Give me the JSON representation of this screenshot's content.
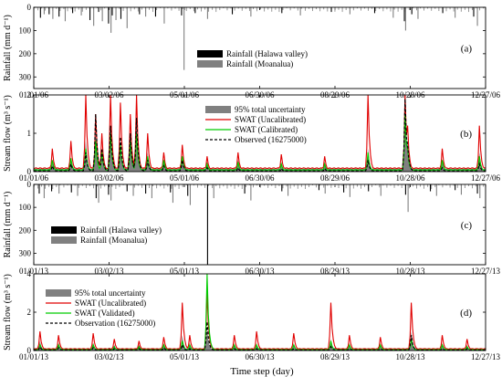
{
  "xlabel": "Time step (day)",
  "chart_data": [
    {
      "panel": "(a)",
      "type": "bar",
      "ylabel": "Rainfall (mm d⁻¹)",
      "ylim": [
        0,
        350
      ],
      "yaxis_inverted": true,
      "yticks": [
        "0",
        "100",
        "200",
        "300"
      ],
      "xtick_labels": [
        "01/01/06",
        "03/02/06",
        "05/01/06",
        "06/30/06",
        "08/29/06",
        "10/28/06",
        "12/27/06"
      ],
      "legend": {
        "placement": "center-right",
        "entries": [
          "Rainfall (Halawa valley)",
          "Rainfall (Moanalua)"
        ]
      },
      "series": [
        {
          "name": "Rainfall (Halawa valley)",
          "color": "#000000",
          "x_day": [
            5,
            12,
            20,
            31,
            45,
            52,
            60,
            63,
            70,
            85,
            98,
            119,
            130,
            160,
            200,
            240,
            275,
            299,
            305,
            330,
            355
          ],
          "values": [
            45,
            30,
            40,
            25,
            55,
            20,
            70,
            35,
            50,
            30,
            40,
            35,
            25,
            30,
            25,
            20,
            25,
            60,
            30,
            25,
            40
          ]
        },
        {
          "name": "Rainfall (Moanalua)",
          "color": "#808080",
          "x_day": [
            8,
            15,
            25,
            38,
            48,
            55,
            62,
            66,
            75,
            90,
            105,
            121,
            140,
            175,
            215,
            255,
            290,
            300,
            310,
            340,
            358
          ],
          "values": [
            30,
            50,
            60,
            35,
            80,
            60,
            110,
            55,
            90,
            40,
            70,
            270,
            50,
            40,
            35,
            30,
            45,
            100,
            50,
            45,
            80
          ]
        }
      ]
    },
    {
      "panel": "(b)",
      "type": "line",
      "ylabel": "Stream flow (m³ s⁻¹)",
      "ylim": [
        0,
        2
      ],
      "yticks": [
        "0",
        "1",
        "2"
      ],
      "xtick_labels": [
        "01/01/06",
        "03/02/06",
        "05/01/06",
        "06/30/06",
        "08/29/06",
        "10/28/06",
        "12/27/06"
      ],
      "legend": {
        "placement": "top-right",
        "entries": [
          "95% total uncertainty",
          "SWAT (Uncalibrated)",
          "SWAT (Calibrated)",
          "Observed (16275000)"
        ]
      },
      "base": {
        "uncertainty": 0.08,
        "uncalibrated": 0.1,
        "calibrated": 0.05,
        "observed": 0.02
      },
      "events": [
        {
          "day": 15,
          "uncalibrated": 0.6,
          "calibrated": 0.3,
          "observed": 0.15,
          "uncertainty": 0.3
        },
        {
          "day": 30,
          "uncalibrated": 0.8,
          "calibrated": 0.35,
          "observed": 0.2,
          "uncertainty": 0.35
        },
        {
          "day": 42,
          "uncalibrated": 2.0,
          "calibrated": 0.6,
          "observed": 0.5,
          "uncertainty": 0.8
        },
        {
          "day": 50,
          "uncalibrated": 1.5,
          "calibrated": 0.8,
          "observed": 1.5,
          "uncertainty": 1.0
        },
        {
          "day": 55,
          "uncalibrated": 1.0,
          "calibrated": 0.5,
          "observed": 0.6,
          "uncertainty": 0.6
        },
        {
          "day": 62,
          "uncalibrated": 2.0,
          "calibrated": 1.0,
          "observed": 1.2,
          "uncertainty": 1.1
        },
        {
          "day": 70,
          "uncalibrated": 1.8,
          "calibrated": 0.7,
          "observed": 0.9,
          "uncertainty": 0.9
        },
        {
          "day": 78,
          "uncalibrated": 1.5,
          "calibrated": 0.8,
          "observed": 1.0,
          "uncertainty": 0.9
        },
        {
          "day": 83,
          "uncalibrated": 2.0,
          "calibrated": 1.0,
          "observed": 1.4,
          "uncertainty": 1.2
        },
        {
          "day": 92,
          "uncalibrated": 1.0,
          "calibrated": 0.4,
          "observed": 0.3,
          "uncertainty": 0.5
        },
        {
          "day": 105,
          "uncalibrated": 0.5,
          "calibrated": 0.3,
          "observed": 0.15,
          "uncertainty": 0.3
        },
        {
          "day": 120,
          "uncalibrated": 0.7,
          "calibrated": 0.4,
          "observed": 0.3,
          "uncertainty": 0.4
        },
        {
          "day": 140,
          "uncalibrated": 0.4,
          "calibrated": 0.2,
          "observed": 0.1,
          "uncertainty": 0.25
        },
        {
          "day": 165,
          "uncalibrated": 0.5,
          "calibrated": 0.25,
          "observed": 0.1,
          "uncertainty": 0.3
        },
        {
          "day": 200,
          "uncalibrated": 0.45,
          "calibrated": 0.2,
          "observed": 0.08,
          "uncertainty": 0.25
        },
        {
          "day": 235,
          "uncalibrated": 0.4,
          "calibrated": 0.2,
          "observed": 0.08,
          "uncertainty": 0.2
        },
        {
          "day": 270,
          "uncalibrated": 2.0,
          "calibrated": 0.5,
          "observed": 0.3,
          "uncertainty": 0.6
        },
        {
          "day": 300,
          "uncalibrated": 2.0,
          "calibrated": 1.5,
          "observed": 1.9,
          "uncertainty": 1.5
        },
        {
          "day": 302,
          "uncalibrated": 1.2,
          "calibrated": 0.6,
          "observed": 0.7,
          "uncertainty": 0.8
        },
        {
          "day": 330,
          "uncalibrated": 0.6,
          "calibrated": 0.3,
          "observed": 0.1,
          "uncertainty": 0.3
        },
        {
          "day": 360,
          "uncalibrated": 1.2,
          "calibrated": 0.4,
          "observed": 0.2,
          "uncertainty": 0.5
        }
      ]
    },
    {
      "panel": "(c)",
      "type": "bar",
      "ylabel": "Rainfall (mm d⁻¹)",
      "ylim": [
        0,
        350
      ],
      "yaxis_inverted": true,
      "yticks": [
        "0",
        "100",
        "200",
        "300"
      ],
      "xtick_labels": [
        "01/01/13",
        "03/02/13",
        "05/01/13",
        "06/30/13",
        "08/29/13",
        "10/28/13",
        "12/27/13"
      ],
      "legend": {
        "placement": "bottom-left",
        "entries": [
          "Rainfall (Halawa valley)",
          "Rainfall (Moanalua)"
        ]
      },
      "series": [
        {
          "name": "Rainfall (Halawa valley)",
          "color": "#000000",
          "x_day": [
            4,
            14,
            30,
            50,
            60,
            75,
            90,
            110,
            124,
            140,
            170,
            200,
            230,
            250,
            270,
            300,
            320,
            340,
            358
          ],
          "values": [
            40,
            30,
            35,
            60,
            45,
            30,
            40,
            35,
            50,
            350,
            40,
            30,
            25,
            35,
            30,
            45,
            30,
            25,
            40
          ]
        },
        {
          "name": "Rainfall (Moanalua)",
          "color": "#808080",
          "x_day": [
            8,
            20,
            35,
            52,
            62,
            80,
            95,
            112,
            126,
            145,
            175,
            205,
            235,
            255,
            280,
            302,
            325,
            345,
            360
          ],
          "values": [
            60,
            40,
            50,
            80,
            70,
            50,
            60,
            80,
            90,
            60,
            70,
            50,
            40,
            55,
            50,
            120,
            50,
            45,
            60
          ]
        }
      ]
    },
    {
      "panel": "(d)",
      "type": "line",
      "ylabel": "Stream flow (m³ s⁻¹)",
      "ylim": [
        0,
        4
      ],
      "yticks": [
        "0",
        "2",
        "4"
      ],
      "xtick_labels": [
        "01/01/13",
        "03/02/13",
        "05/01/13",
        "06/30/13",
        "08/29/13",
        "10/28/13",
        "12/27/13"
      ],
      "legend": {
        "placement": "top-left",
        "entries": [
          "95% total uncertainty",
          "SWAT (Uncalibrated)",
          "SWAT (Validated)",
          "Observation (16275000)"
        ]
      },
      "base": {
        "uncertainty": 0.1,
        "uncalibrated": 0.1,
        "calibrated": 0.05,
        "observed": 0.03
      },
      "events": [
        {
          "day": 5,
          "uncalibrated": 1.0,
          "calibrated": 0.3,
          "observed": 0.2,
          "uncertainty": 0.5
        },
        {
          "day": 20,
          "uncalibrated": 0.8,
          "calibrated": 0.3,
          "observed": 0.15,
          "uncertainty": 0.4
        },
        {
          "day": 48,
          "uncalibrated": 0.9,
          "calibrated": 0.3,
          "observed": 0.15,
          "uncertainty": 0.4
        },
        {
          "day": 65,
          "uncalibrated": 0.6,
          "calibrated": 0.2,
          "observed": 0.1,
          "uncertainty": 0.3
        },
        {
          "day": 85,
          "uncalibrated": 0.5,
          "calibrated": 0.2,
          "observed": 0.1,
          "uncertainty": 0.3
        },
        {
          "day": 105,
          "uncalibrated": 0.7,
          "calibrated": 0.3,
          "observed": 0.15,
          "uncertainty": 0.3
        },
        {
          "day": 120,
          "uncalibrated": 2.5,
          "calibrated": 0.5,
          "observed": 0.3,
          "uncertainty": 0.8
        },
        {
          "day": 126,
          "uncalibrated": 0.8,
          "calibrated": 0.3,
          "observed": 0.1,
          "uncertainty": 0.3
        },
        {
          "day": 140,
          "uncalibrated": 3.0,
          "calibrated": 4.0,
          "observed": 1.5,
          "uncertainty": 1.2
        },
        {
          "day": 162,
          "uncalibrated": 0.8,
          "calibrated": 0.3,
          "observed": 0.1,
          "uncertainty": 0.3
        },
        {
          "day": 180,
          "uncalibrated": 1.0,
          "calibrated": 0.3,
          "observed": 0.1,
          "uncertainty": 0.3
        },
        {
          "day": 210,
          "uncalibrated": 0.9,
          "calibrated": 0.3,
          "observed": 0.1,
          "uncertainty": 0.3
        },
        {
          "day": 240,
          "uncalibrated": 2.5,
          "calibrated": 0.5,
          "observed": 0.2,
          "uncertainty": 0.6
        },
        {
          "day": 255,
          "uncalibrated": 0.8,
          "calibrated": 0.3,
          "observed": 0.1,
          "uncertainty": 0.3
        },
        {
          "day": 280,
          "uncalibrated": 0.7,
          "calibrated": 0.3,
          "observed": 0.1,
          "uncertainty": 0.3
        },
        {
          "day": 305,
          "uncalibrated": 2.5,
          "calibrated": 0.6,
          "observed": 0.8,
          "uncertainty": 1.0
        },
        {
          "day": 330,
          "uncalibrated": 0.8,
          "calibrated": 0.3,
          "observed": 0.1,
          "uncertainty": 0.3
        },
        {
          "day": 350,
          "uncalibrated": 0.6,
          "calibrated": 0.2,
          "observed": 0.1,
          "uncertainty": 0.3
        }
      ]
    }
  ],
  "colors": {
    "uncertainty": "#808080",
    "uncalibrated": "#e00000",
    "calibrated": "#00cc00",
    "observed": "#000000",
    "rain_primary": "#000000",
    "rain_secondary": "#808080"
  }
}
